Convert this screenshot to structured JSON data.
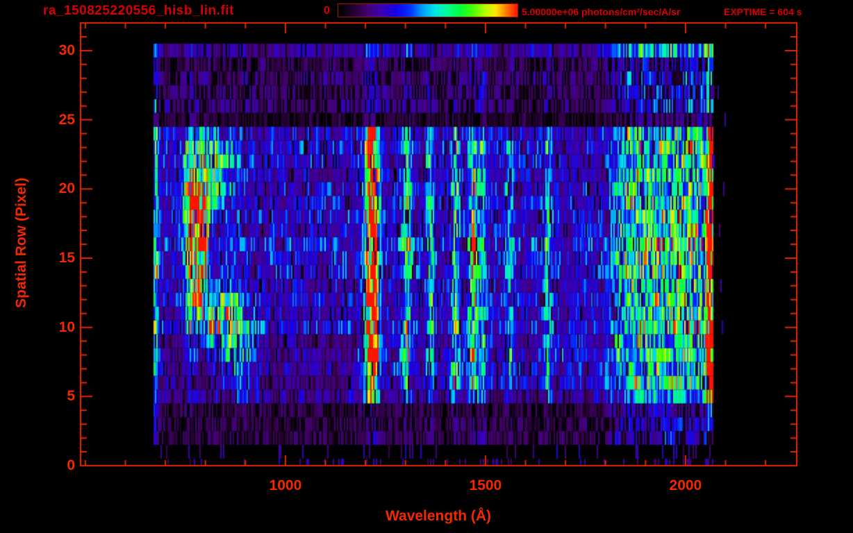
{
  "colors": {
    "background": "#000000",
    "header_red": "#d80000",
    "axis_red": "#f22800",
    "frame_red": "#e82800",
    "colorbar_border": "#a01400"
  },
  "chart_data": {
    "type": "heatmap",
    "title": "ra_150825220556_hisb_lin.fit",
    "xlabel": "Wavelength (Å)",
    "ylabel": "Spatial Row (Pixel)",
    "exptime_label": "EXPTIME = 604 s",
    "xlim": [
      488,
      2278
    ],
    "ylim": [
      0,
      32
    ],
    "x_major_ticks": [
      1000,
      1500,
      2000
    ],
    "x_minor_step": 100,
    "y_major_ticks": [
      0,
      5,
      10,
      15,
      20,
      25,
      30
    ],
    "y_minor_step": 1,
    "grid": false,
    "legend_position": "top-colorbar",
    "colorbar": {
      "min_label": "0",
      "max_label": "5.00000e+06 photons/cm²/sec/A/sr",
      "min_value": 0,
      "max_value": 5000000,
      "units": "photons/cm²/sec/A/sr"
    },
    "colormap_stops": [
      [
        0.0,
        "#000000"
      ],
      [
        0.08,
        "#23002e"
      ],
      [
        0.16,
        "#45006e"
      ],
      [
        0.24,
        "#3c00b4"
      ],
      [
        0.32,
        "#1800e6"
      ],
      [
        0.4,
        "#0032ff"
      ],
      [
        0.47,
        "#00a0ff"
      ],
      [
        0.54,
        "#00e6e6"
      ],
      [
        0.61,
        "#00ff96"
      ],
      [
        0.68,
        "#00ff3c"
      ],
      [
        0.75,
        "#46ff00"
      ],
      [
        0.82,
        "#b4ff00"
      ],
      [
        0.88,
        "#ffe600"
      ],
      [
        0.93,
        "#ff8c00"
      ],
      [
        1.0,
        "#ff1400"
      ]
    ],
    "data_extent": {
      "wavelength_min": 672,
      "wavelength_max": 2070,
      "row_min": 0,
      "row_max": 31
    },
    "model": {
      "seed": 1234,
      "continuum_base": 0.3,
      "dip": {
        "rows": [
          6,
          9.5
        ],
        "wl_max": 1180,
        "factor": 0.75
      },
      "green_band": {
        "start": 1790,
        "ramp": 70,
        "amp": 0.34
      },
      "emission_lines": [
        {
          "wl": 676,
          "amp": 0.4,
          "sig": 5,
          "halo": 1.0
        },
        {
          "wl": 1216,
          "amp": 1.0,
          "sig": 11,
          "halo": 0.22
        },
        {
          "wl": 1304,
          "amp": 0.42,
          "sig": 8,
          "halo": 0.45
        },
        {
          "wl": 1363,
          "amp": 0.3,
          "sig": 7,
          "halo": 0.45
        },
        {
          "wl": 1425,
          "amp": 0.38,
          "sig": 7,
          "halo": 0.45
        },
        {
          "wl": 1470,
          "amp": 0.42,
          "sig": 8,
          "halo": 0.45
        },
        {
          "wl": 1493,
          "amp": 0.3,
          "sig": 6,
          "halo": 0.45
        },
        {
          "wl": 1561,
          "amp": 0.22,
          "sig": 6,
          "halo": 0.4
        },
        {
          "wl": 1657,
          "amp": 0.24,
          "sig": 7,
          "halo": 0.4
        },
        {
          "wl": 2062,
          "amp": 0.95,
          "sig": 6,
          "halo": 0.3
        }
      ],
      "blobs": [
        {
          "wl": 780,
          "row": 17,
          "amp": 1.05,
          "sigw": 16,
          "sigr": 3.6
        },
        {
          "wl": 760,
          "row": 17,
          "amp": 0.3,
          "sigw": 9,
          "sigr": 6.0
        },
        {
          "wl": 822,
          "row": 21.5,
          "amp": 0.5,
          "sigw": 40,
          "sigr": 1.6
        },
        {
          "wl": 845,
          "row": 10.5,
          "amp": 0.45,
          "sigw": 38,
          "sigr": 1.8
        },
        {
          "wl": 890,
          "row": 8,
          "amp": 0.32,
          "sigw": 26,
          "sigr": 1.8
        }
      ],
      "row_profile": [
        {
          "rows": [
            0,
            1.5
          ],
          "factor": 0.08,
          "sparse": true
        },
        {
          "rows": [
            1.5,
            2.5
          ],
          "factor": 0.45,
          "ragged": true
        },
        {
          "rows": [
            2.5,
            4.5
          ],
          "factor": 0.42,
          "ragged": true
        },
        {
          "rows": [
            4.5,
            5.5
          ],
          "factor": 0.8
        },
        {
          "rows": [
            5.5,
            23.5
          ],
          "factor": 1.0
        },
        {
          "rows": [
            23.5,
            24.5
          ],
          "factor": 0.9
        },
        {
          "rows": [
            24.5,
            25.5
          ],
          "factor": 0.3,
          "ragged": true
        },
        {
          "rows": [
            25.5,
            29.5
          ],
          "factor": 0.5,
          "ragged": true
        },
        {
          "rows": [
            29.5,
            30.6
          ],
          "factor": 0.7
        },
        {
          "rows": [
            30.6,
            32
          ],
          "factor": 0.0
        }
      ],
      "right_speckle": {
        "wl_extra": 35,
        "prob": 0.03,
        "rows": [
          2,
          28
        ]
      }
    }
  }
}
